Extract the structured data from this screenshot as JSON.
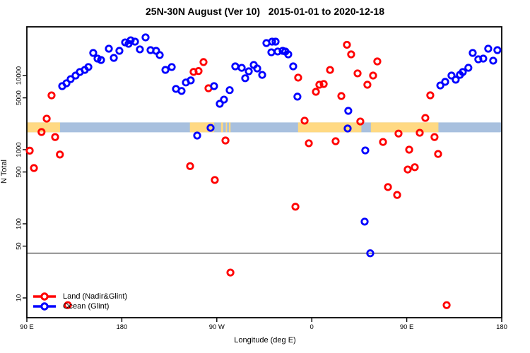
{
  "title": "25N-30N August (Ver 10)   2015-01-01 to 2020-12-18",
  "chart_data": {
    "type": "scatter",
    "title": "25N-30N August (Ver 10)   2015-01-01 to 2020-12-18",
    "x_axis": {
      "label": "Longitude (deg E)",
      "range": [
        90,
        540
      ],
      "ticks": [
        {
          "value": 90,
          "label": "90 E"
        },
        {
          "value": 180,
          "label": "180"
        },
        {
          "value": 270,
          "label": "90 W"
        },
        {
          "value": 360,
          "label": "0"
        },
        {
          "value": 450,
          "label": "90 E"
        },
        {
          "value": 540,
          "label": "180"
        }
      ]
    },
    "y_axis": {
      "label": "N Total",
      "scale": "log",
      "range": [
        7,
        45000
      ],
      "ticks": [
        {
          "value": 10000,
          "label": "10000"
        },
        {
          "value": 5000,
          "label": "5000"
        },
        {
          "value": 1000,
          "label": "1000"
        },
        {
          "value": 500,
          "label": "500"
        },
        {
          "value": 100,
          "label": "100"
        },
        {
          "value": 50,
          "label": "50"
        },
        {
          "value": 10,
          "label": "10"
        }
      ]
    },
    "reference_line": {
      "value": 40,
      "color": "#8C8C8C"
    },
    "coast_strip": {
      "center_value": 2000,
      "land_color": "#FFD983",
      "ocean_color": "#A8C0DE",
      "land_segments": [
        [
          90,
          121.5
        ],
        [
          244.5,
          267.5
        ],
        [
          274,
          276
        ],
        [
          278.5,
          279.7
        ],
        [
          281.5,
          283
        ],
        [
          347,
          407
        ],
        [
          416,
          480
        ]
      ]
    },
    "legend": {
      "position": "bottom-left"
    },
    "series": [
      {
        "name": "Land (Nadir&Glint)",
        "color": "#FF0000",
        "marker": "open-circle",
        "points": [
          [
            92.7,
            970
          ],
          [
            96.7,
            565
          ],
          [
            103.9,
            1730
          ],
          [
            108.8,
            2620
          ],
          [
            113.4,
            5400
          ],
          [
            116.8,
            1480
          ],
          [
            121.3,
            860
          ],
          [
            128.8,
            8
          ],
          [
            244.7,
            600
          ],
          [
            248,
            11200
          ],
          [
            252.7,
            11500
          ],
          [
            257.4,
            15200
          ],
          [
            262.1,
            6740
          ],
          [
            268.1,
            390
          ],
          [
            278.2,
            1330
          ],
          [
            282.9,
            22
          ],
          [
            344.5,
            170
          ],
          [
            347.1,
            9370
          ],
          [
            353.2,
            2460
          ],
          [
            357.2,
            1220
          ],
          [
            363.9,
            6040
          ],
          [
            367.2,
            7520
          ],
          [
            371.3,
            7690
          ],
          [
            377.3,
            11900
          ],
          [
            382.6,
            1300
          ],
          [
            388,
            5290
          ],
          [
            393.3,
            26000
          ],
          [
            397.3,
            19300
          ],
          [
            403.4,
            10700
          ],
          [
            406,
            2400
          ],
          [
            412.7,
            7520
          ],
          [
            418.1,
            10000
          ],
          [
            422.1,
            15500
          ],
          [
            427.5,
            1270
          ],
          [
            432.2,
            313
          ],
          [
            440.9,
            245
          ],
          [
            442.2,
            1650
          ],
          [
            450.9,
            540
          ],
          [
            452.3,
            1000
          ],
          [
            457.6,
            580
          ],
          [
            462.3,
            1690
          ],
          [
            467.6,
            2680
          ],
          [
            472.3,
            5410
          ],
          [
            476.3,
            1480
          ],
          [
            479.7,
            875
          ],
          [
            487.8,
            8
          ]
        ]
      },
      {
        "name": "Ocean (Glint)",
        "color": "#0000FF",
        "marker": "open-circle",
        "points": [
          [
            123.5,
            7200
          ],
          [
            127.5,
            7860
          ],
          [
            131.5,
            8950
          ],
          [
            136.2,
            10000
          ],
          [
            140.2,
            11160
          ],
          [
            144.9,
            11920
          ],
          [
            148.3,
            13030
          ],
          [
            152.9,
            20180
          ],
          [
            157,
            16930
          ],
          [
            160.3,
            16200
          ],
          [
            167.7,
            23020
          ],
          [
            172.4,
            17300
          ],
          [
            177.7,
            21550
          ],
          [
            183.1,
            28000
          ],
          [
            186.4,
            26800
          ],
          [
            188.4,
            29900
          ],
          [
            192.5,
            28650
          ],
          [
            197.1,
            22550
          ],
          [
            202.5,
            32700
          ],
          [
            207.2,
            22020
          ],
          [
            212.5,
            21550
          ],
          [
            215.9,
            18900
          ],
          [
            221.3,
            11920
          ],
          [
            227.3,
            13030
          ],
          [
            231.3,
            6600
          ],
          [
            236.6,
            6200
          ],
          [
            240.7,
            8060
          ],
          [
            245.3,
            8600
          ],
          [
            251.4,
            1550
          ],
          [
            264.1,
            1970
          ],
          [
            267.4,
            7200
          ],
          [
            272.8,
            4160
          ],
          [
            276.8,
            4740
          ],
          [
            282.2,
            6350
          ],
          [
            287.5,
            13300
          ],
          [
            293.6,
            12700
          ],
          [
            296.9,
            9200
          ],
          [
            300.3,
            11400
          ],
          [
            305,
            13900
          ],
          [
            308.3,
            12450
          ],
          [
            313,
            10200
          ],
          [
            317,
            27400
          ],
          [
            321.7,
            20600
          ],
          [
            322.4,
            28650
          ],
          [
            325.7,
            28650
          ],
          [
            327.7,
            21100
          ],
          [
            332.4,
            21550
          ],
          [
            335,
            21100
          ],
          [
            337.7,
            19300
          ],
          [
            342.4,
            13300
          ],
          [
            346.4,
            5190
          ],
          [
            394,
            1930
          ],
          [
            394.6,
            3340
          ],
          [
            410.1,
            107
          ],
          [
            410.7,
            977
          ],
          [
            415.4,
            40
          ],
          [
            481.8,
            7350
          ],
          [
            486.4,
            8230
          ],
          [
            492.4,
            10000
          ],
          [
            496.4,
            8790
          ],
          [
            500.4,
            10220
          ],
          [
            503.1,
            11160
          ],
          [
            508.4,
            12720
          ],
          [
            512.5,
            20180
          ],
          [
            517.8,
            16550
          ],
          [
            522.5,
            16930
          ],
          [
            527.2,
            23020
          ],
          [
            531.9,
            15870
          ],
          [
            535.9,
            22020
          ]
        ]
      }
    ]
  }
}
